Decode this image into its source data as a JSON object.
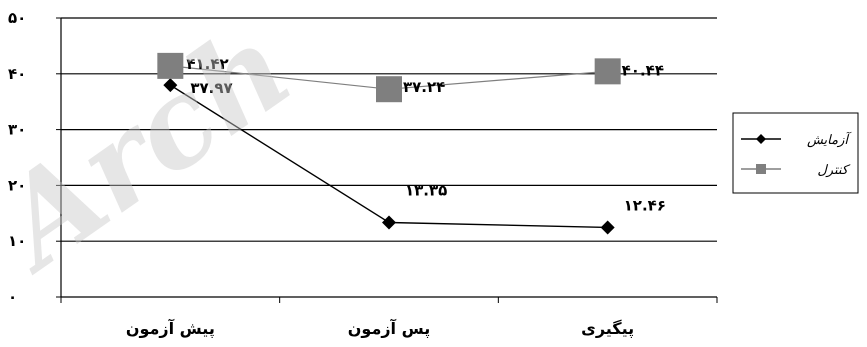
{
  "watermark": "Arch",
  "chart_data": {
    "type": "line",
    "categories": [
      "پیش آزمون",
      "پس آزمون",
      "پیگیری"
    ],
    "ylim": [
      0,
      50
    ],
    "yticks": [
      0,
      10,
      20,
      30,
      40,
      50
    ],
    "ytick_labels": [
      "۰",
      "۱۰",
      "۲۰",
      "۳۰",
      "۴۰",
      "۵۰"
    ],
    "grid": true,
    "legend_position": "right",
    "series": [
      {
        "name": "آزمایش",
        "values": [
          37.97,
          13.35,
          12.46
        ],
        "labels": [
          "۳۷.۹۷",
          "۱۳.۳۵",
          "۱۲.۴۶"
        ],
        "color": "#000000",
        "marker": "diamond"
      },
      {
        "name": "کنترل",
        "values": [
          41.42,
          37.24,
          40.44
        ],
        "labels": [
          "۴۱.۴۲",
          "۳۷.۲۴",
          "۴۰.۴۴"
        ],
        "color": "#7f7f7f",
        "marker": "square"
      }
    ]
  }
}
